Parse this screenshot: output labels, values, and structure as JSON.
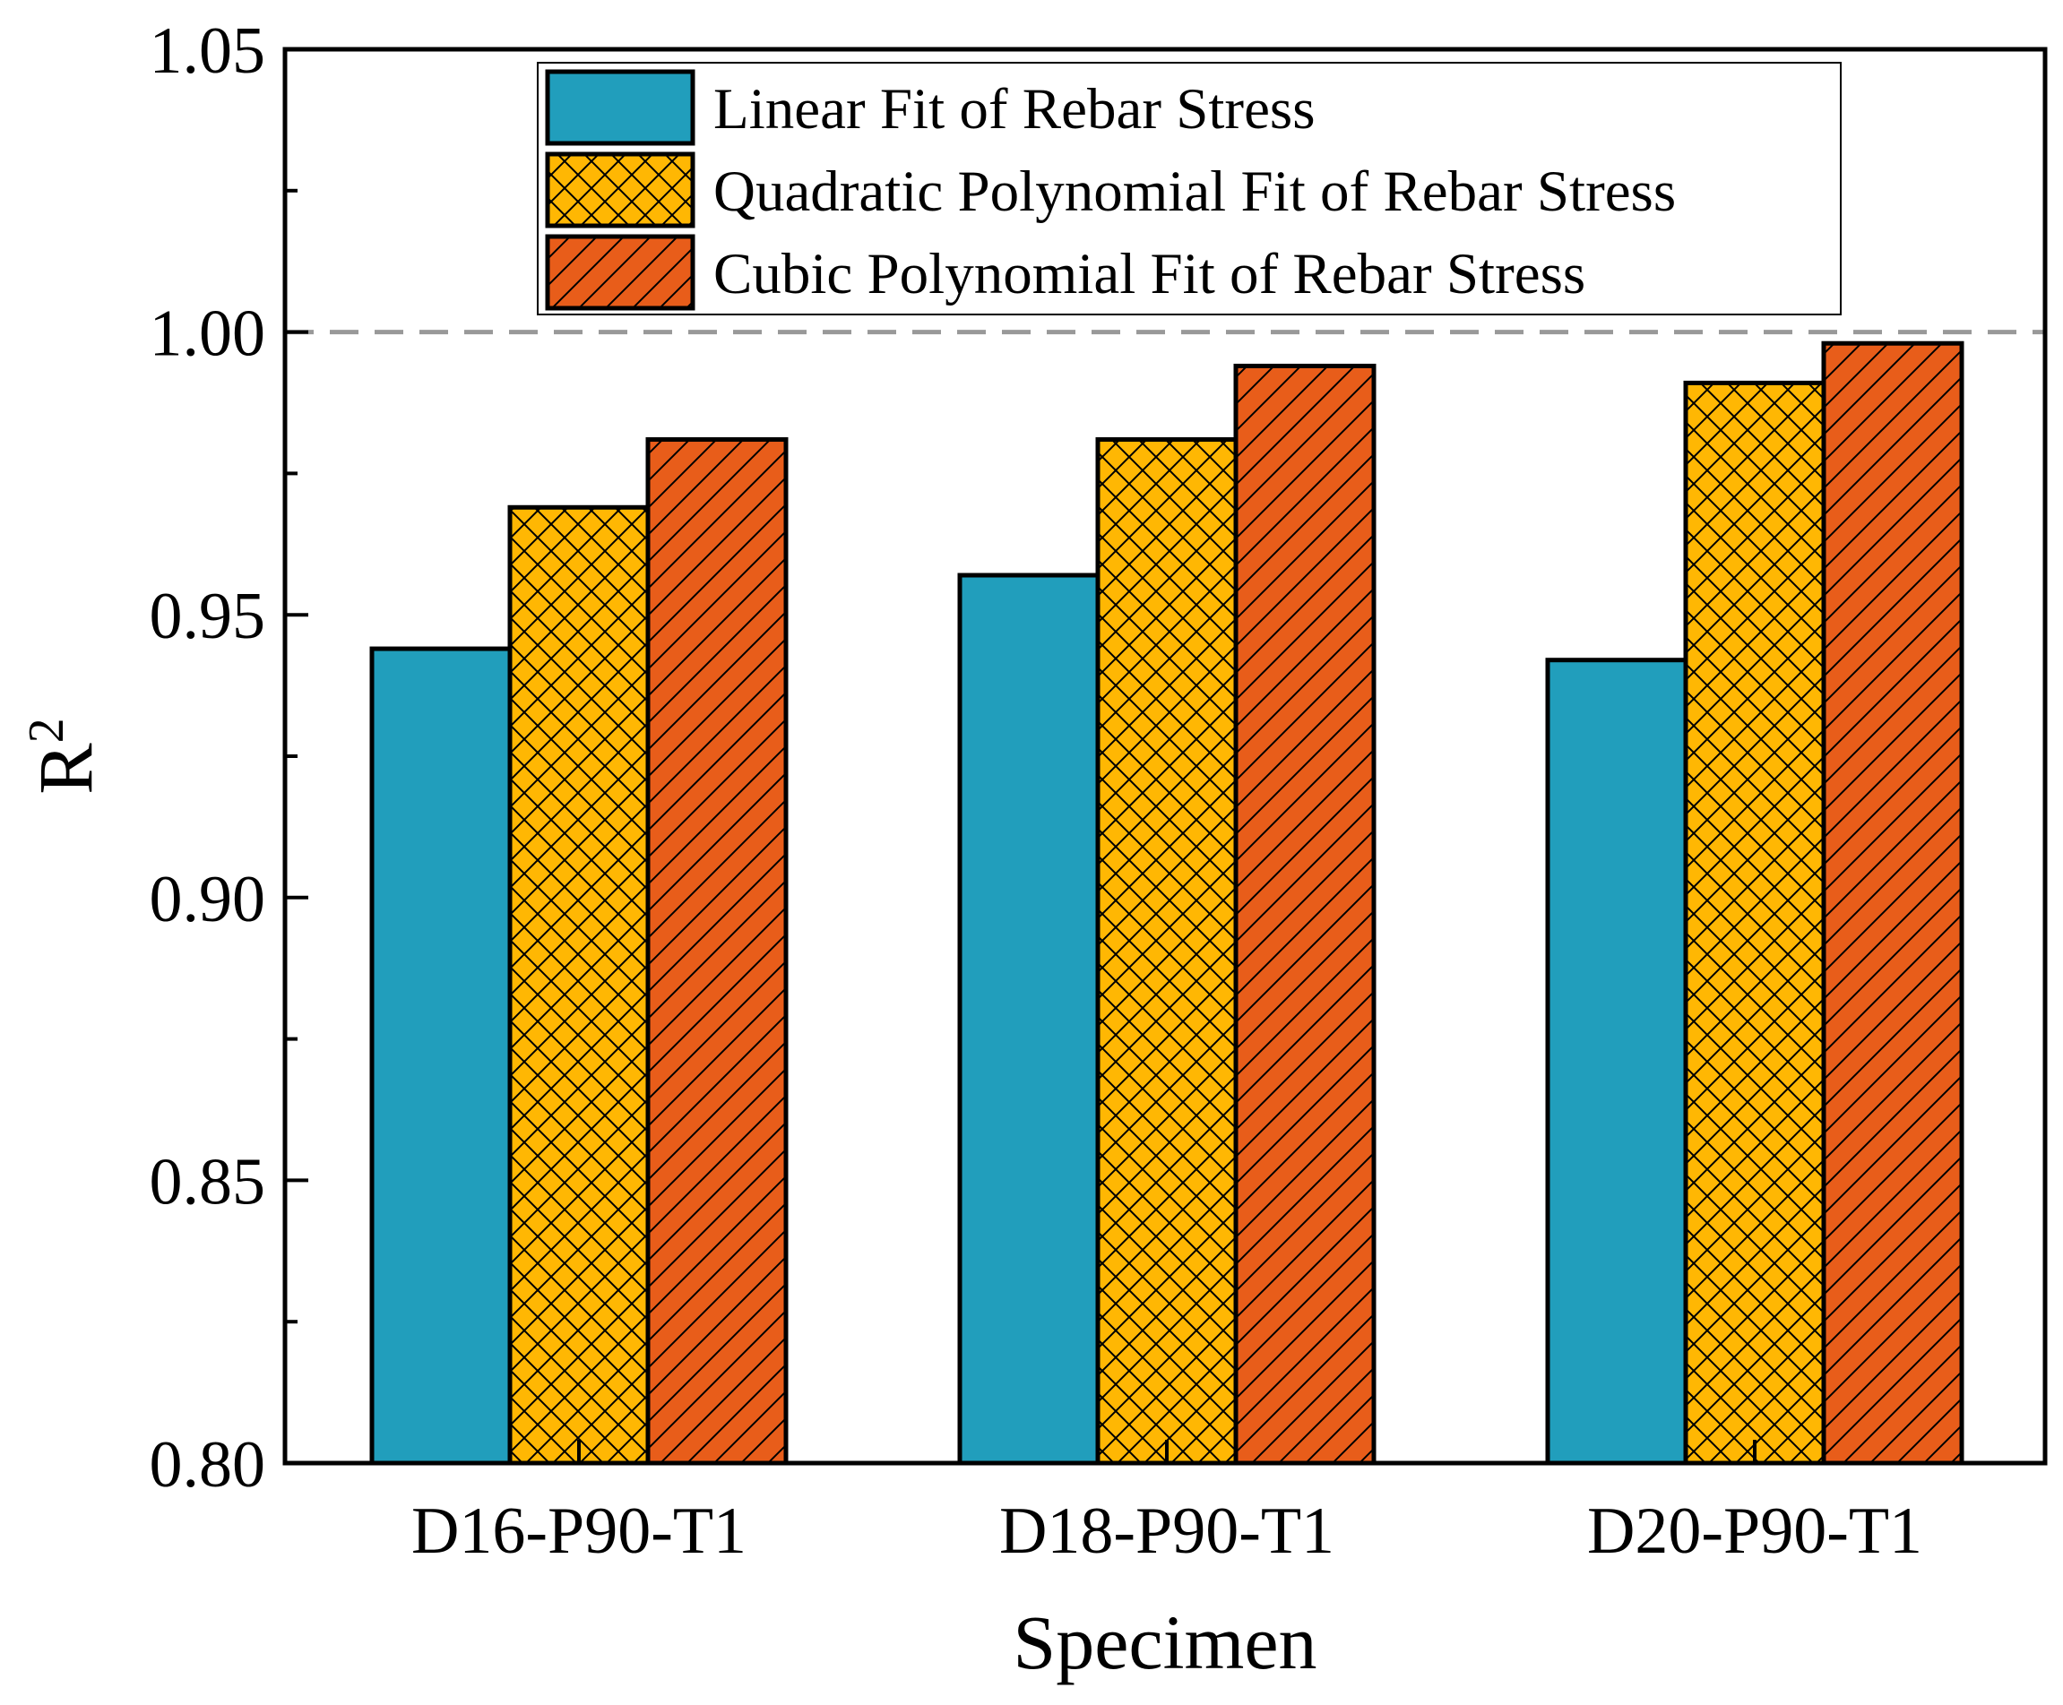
{
  "chart_data": {
    "type": "bar",
    "title": "",
    "xlabel": "Specimen",
    "ylabel": "R",
    "ylabel_superscript": "2",
    "ylim": [
      0.8,
      1.05
    ],
    "yticks": [
      "0.80",
      "0.85",
      "0.90",
      "0.95",
      "1.00",
      "1.05"
    ],
    "reference_line": {
      "y": 1.0,
      "style": "dashed",
      "color": "#999999"
    },
    "categories": [
      "D16-P90-T1",
      "D18-P90-T1",
      "D20-P90-T1"
    ],
    "series": [
      {
        "name": "Linear Fit of Rebar Stress",
        "values": [
          0.944,
          0.957,
          0.942
        ],
        "color": "#219ebc",
        "pattern": "solid"
      },
      {
        "name": "Quadratic Polynomial Fit of Rebar Stress",
        "values": [
          0.969,
          0.981,
          0.991
        ],
        "color": "#ffb703",
        "pattern": "crosshatch"
      },
      {
        "name": "Cubic Polynomial Fit of Rebar Stress",
        "values": [
          0.981,
          0.994,
          0.998
        ],
        "color": "#e85d1a",
        "pattern": "diagonal"
      }
    ],
    "legend_position": "top-right",
    "grid": false
  }
}
